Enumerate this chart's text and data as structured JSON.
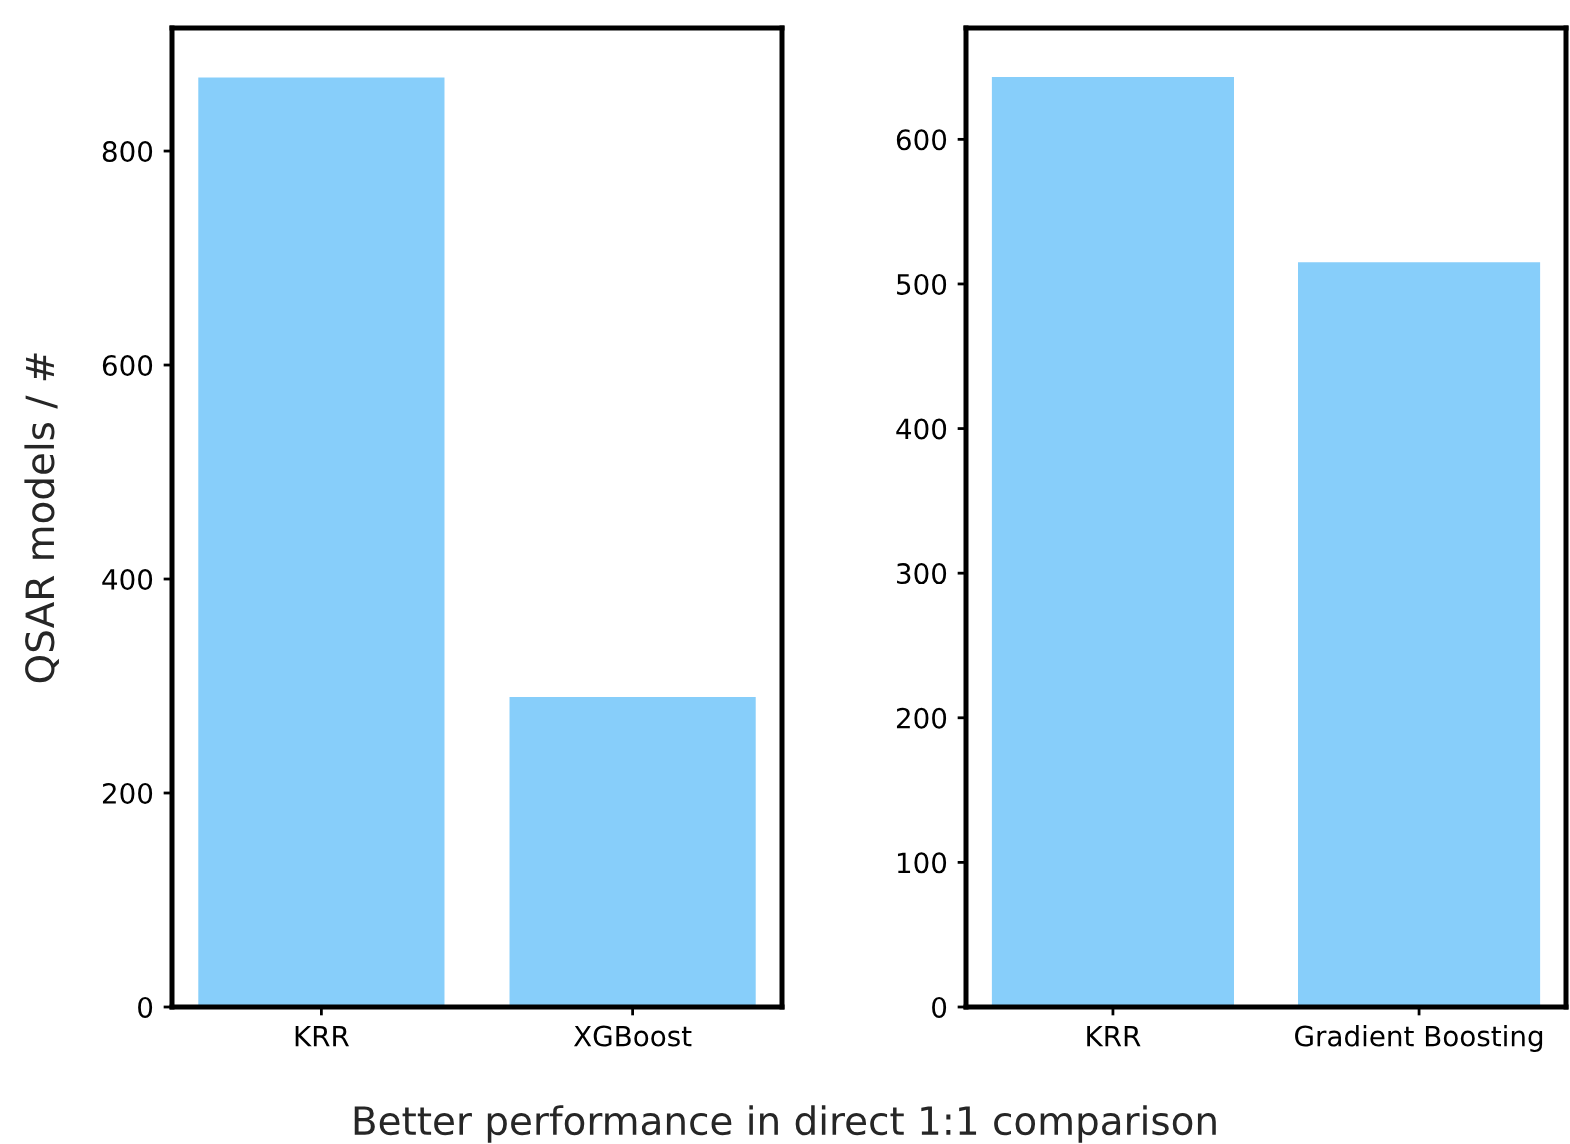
{
  "chart_data": [
    {
      "type": "bar",
      "ylabel": "QSAR models / #",
      "categories": [
        "KRR",
        "XGBoost"
      ],
      "values": [
        870,
        291
      ],
      "color": "#87cefa",
      "ylim": [
        0,
        915
      ],
      "yticks": [
        0,
        200,
        400,
        600,
        800
      ],
      "grid": false
    },
    {
      "type": "bar",
      "xlabel": "Better performance in direct 1:1 comparison",
      "categories": [
        "KRR",
        "Gradient Boosting"
      ],
      "values": [
        644,
        516
      ],
      "color": "#87cefa",
      "ylim": [
        0,
        677
      ],
      "yticks": [
        0,
        100,
        200,
        300,
        400,
        500,
        600
      ],
      "grid": false
    }
  ]
}
